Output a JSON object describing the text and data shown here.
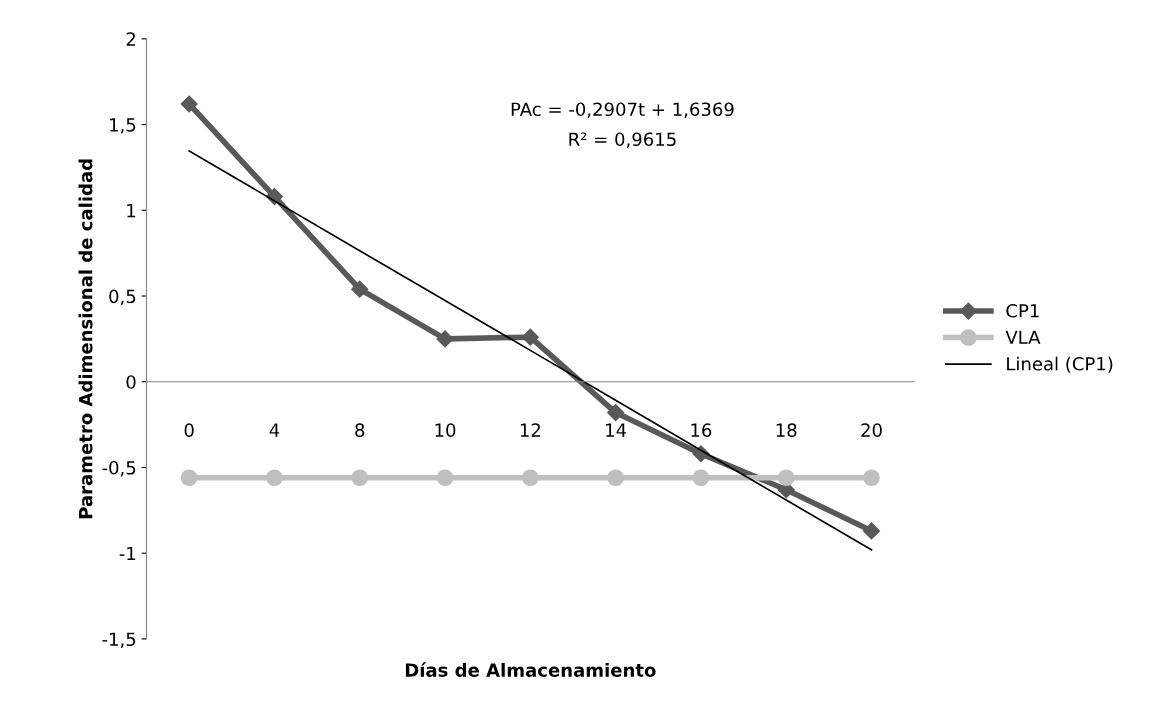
{
  "chart_data": {
    "type": "line",
    "xlabel": "Días de Almacenamiento",
    "ylabel": "Parametro Adimensional de calidad",
    "categories": [
      "0",
      "4",
      "8",
      "10",
      "12",
      "14",
      "16",
      "18",
      "20"
    ],
    "series": [
      {
        "name": "CP1",
        "color": "#595959",
        "marker": "diamond",
        "values": [
          1.62,
          1.08,
          0.54,
          0.25,
          0.26,
          -0.18,
          -0.42,
          -0.63,
          -0.87
        ]
      },
      {
        "name": "VLA",
        "color": "#bfbfbf",
        "marker": "circle",
        "values": [
          -0.56,
          -0.56,
          -0.56,
          -0.56,
          -0.56,
          -0.56,
          -0.56,
          -0.56,
          -0.56
        ]
      },
      {
        "name": "Lineal (CP1)",
        "color": "#000000",
        "marker": "none",
        "values": [
          1.346,
          1.055,
          0.764,
          0.474,
          0.183,
          -0.108,
          -0.399,
          -0.69,
          -0.98
        ]
      }
    ],
    "ylim": [
      -1.5,
      2
    ],
    "yticks": [
      {
        "value": -1.5,
        "label": "-1,5"
      },
      {
        "value": -1,
        "label": "-1"
      },
      {
        "value": -0.5,
        "label": "-0,5"
      },
      {
        "value": 0,
        "label": "0"
      },
      {
        "value": 0.5,
        "label": "0,5"
      },
      {
        "value": 1,
        "label": "1"
      },
      {
        "value": 1.5,
        "label": "1,5"
      },
      {
        "value": 2,
        "label": "2"
      }
    ],
    "annotations": [
      "PAc = -0,2907t + 1,6369",
      "R² = 0,9615"
    ],
    "grid": false,
    "legend": "right"
  }
}
